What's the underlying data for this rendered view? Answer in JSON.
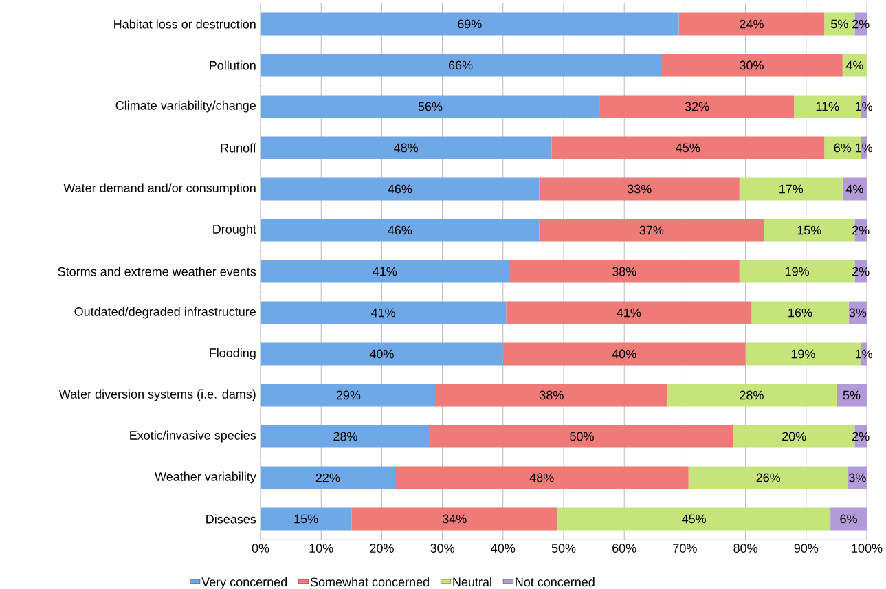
{
  "chart_data": {
    "type": "bar",
    "orientation": "horizontal",
    "stacked": true,
    "grid": "x",
    "legend": "bottom",
    "categories": [
      "Habitat loss or destruction",
      "Pollution",
      "Climate variability/change",
      "Runoff",
      "Water demand and/or consumption",
      "Drought",
      "Storms and extreme weather events",
      "Outdated/degraded infrastructure",
      "Flooding",
      "Water diversion systems (i.e. dams)",
      "Exotic/invasive species",
      "Weather variability",
      "Diseases"
    ],
    "xlim": [
      0,
      100
    ],
    "xticks": [
      {
        "value": 0,
        "label": "0%"
      },
      {
        "value": 10,
        "label": "10%"
      },
      {
        "value": 20,
        "label": "20%"
      },
      {
        "value": 30,
        "label": "30%"
      },
      {
        "value": 40,
        "label": "40%"
      },
      {
        "value": 50,
        "label": "50%"
      },
      {
        "value": 60,
        "label": "60%"
      },
      {
        "value": 70,
        "label": "70%"
      },
      {
        "value": 80,
        "label": "80%"
      },
      {
        "value": 90,
        "label": "90%"
      },
      {
        "value": 100,
        "label": "100%"
      }
    ],
    "series": [
      {
        "name": "Very concerned",
        "color": "#6fa8e6",
        "values": [
          69,
          66,
          56,
          48,
          46,
          46,
          41,
          40.5,
          40,
          29,
          28,
          22.2,
          15
        ],
        "value_labels": [
          "69%",
          "66%",
          "56%",
          "48%",
          "46%",
          "46%",
          "41%",
          "41%",
          "40%",
          "29%",
          "28%",
          "22%",
          "15%"
        ]
      },
      {
        "name": "Somewhat concerned",
        "color": "#ee7b78",
        "values": [
          24,
          30,
          32,
          45,
          33,
          37,
          38,
          40.5,
          40,
          38,
          50,
          48.4,
          34
        ],
        "value_labels": [
          "24%",
          "30%",
          "32%",
          "45%",
          "33%",
          "37%",
          "38%",
          "41%",
          "40%",
          "38%",
          "50%",
          "48%",
          "34%"
        ]
      },
      {
        "name": "Neutral",
        "color": "#c5e57a",
        "values": [
          5,
          4,
          11,
          6,
          17,
          15,
          19,
          16,
          19,
          28,
          20,
          26.3,
          45
        ],
        "value_labels": [
          "5%",
          "4%",
          "11%",
          "6%",
          "17%",
          "15%",
          "19%",
          "16%",
          "19%",
          "28%",
          "20%",
          "26%",
          "45%"
        ]
      },
      {
        "name": "Not concerned",
        "color": "#b39ad8",
        "values": [
          2,
          0,
          1,
          1,
          4,
          2,
          2,
          3,
          1,
          5,
          2,
          3.1,
          6
        ],
        "value_labels": [
          "2%",
          null,
          "1%",
          "1%",
          "4%",
          "2%",
          "2%",
          "3%",
          "1%",
          "5%",
          "2%",
          "3%",
          "6%"
        ]
      }
    ]
  }
}
